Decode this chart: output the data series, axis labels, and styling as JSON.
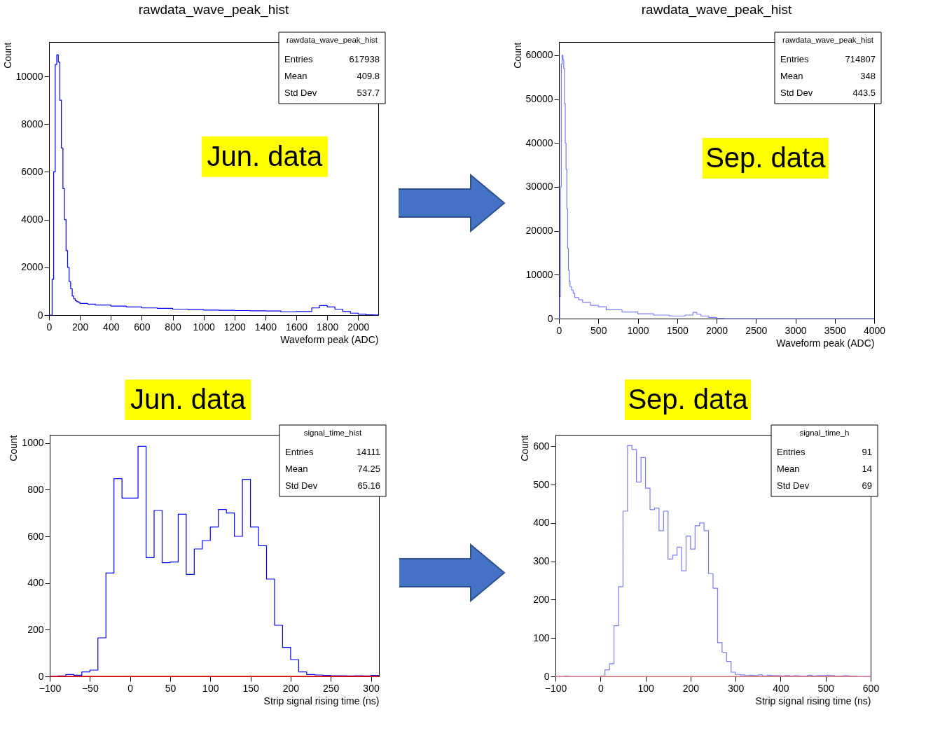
{
  "chart_data": [
    {
      "type": "histogram",
      "title": "rawdata_wave_peak_hist",
      "xlabel": "Waveform peak (ADC)",
      "ylabel": "Count",
      "color": "#0000ff",
      "bins": [
        0,
        10,
        20,
        30,
        40,
        50,
        60,
        70,
        80,
        90,
        100,
        110,
        120,
        130,
        140,
        150,
        160,
        170,
        180,
        190,
        200,
        250,
        300,
        400,
        500,
        600,
        700,
        800,
        900,
        1000,
        1100,
        1200,
        1300,
        1400,
        1500,
        1600,
        1700,
        1750,
        1800,
        1850,
        1900,
        1950,
        2000,
        2050,
        2100,
        2130
      ],
      "values": [
        0,
        0,
        1500,
        6000,
        10500,
        10900,
        10600,
        9000,
        7000,
        5300,
        4000,
        2700,
        2000,
        1400,
        1100,
        800,
        680,
        600,
        560,
        530,
        490,
        460,
        420,
        380,
        340,
        300,
        280,
        250,
        230,
        210,
        200,
        190,
        180,
        170,
        140,
        150,
        300,
        400,
        340,
        250,
        150,
        80,
        40,
        15,
        5
      ],
      "xlim": [
        0,
        2130
      ],
      "xticks": [
        0,
        200,
        400,
        600,
        800,
        1000,
        1200,
        1400,
        1600,
        1800,
        2000
      ],
      "ylim": [
        0,
        11440
      ],
      "yticks": [
        0,
        2000,
        4000,
        6000,
        8000,
        10000
      ],
      "annotations": [
        "rawdata_wave_peak_hist",
        "Entries 617938",
        "Mean 409.8",
        "Std Dev 537.7",
        "Jun. data"
      ]
    },
    {
      "type": "histogram",
      "title": "rawdata_wave_peak_hist",
      "xlabel": "Waveform peak (ADC)",
      "ylabel": "Count",
      "color": "#7b7bff",
      "bins": [
        0,
        10,
        20,
        30,
        40,
        50,
        60,
        70,
        80,
        90,
        100,
        110,
        120,
        130,
        140,
        160,
        180,
        200,
        250,
        300,
        400,
        500,
        600,
        800,
        1000,
        1200,
        1400,
        1600,
        1700,
        1750,
        1800,
        1900,
        2000,
        2100,
        4000
      ],
      "values": [
        0,
        5000,
        30000,
        58000,
        60000,
        59000,
        57000,
        49000,
        40000,
        34000,
        25000,
        16000,
        11000,
        8500,
        7300,
        6500,
        5800,
        4800,
        4300,
        3700,
        3000,
        2700,
        2000,
        1500,
        1100,
        800,
        600,
        800,
        1400,
        1000,
        600,
        250,
        40,
        0
      ],
      "xlim": [
        0,
        4000
      ],
      "xticks": [
        0,
        500,
        1000,
        1500,
        2000,
        2500,
        3000,
        3500,
        4000
      ],
      "ylim": [
        0,
        63000
      ],
      "yticks": [
        0,
        10000,
        20000,
        30000,
        40000,
        50000,
        60000
      ],
      "annotations": [
        "rawdata_wave_peak_hist",
        "Entries 714807",
        "Mean 348",
        "Std Dev 443.5",
        "Sep. data"
      ]
    },
    {
      "type": "histogram",
      "xlabel": "Strip signal rising time (ns)",
      "ylabel": "Count",
      "color": "#0000ff",
      "bins": [
        -100,
        -90,
        -80,
        -70,
        -60,
        -50,
        -40,
        -30,
        -20,
        -10,
        0,
        10,
        20,
        30,
        40,
        50,
        60,
        70,
        80,
        90,
        100,
        110,
        120,
        130,
        140,
        150,
        160,
        170,
        180,
        190,
        200,
        210,
        220,
        230,
        240,
        250,
        260,
        270,
        280,
        290,
        300,
        310
      ],
      "values": [
        0,
        2,
        8,
        5,
        19,
        27,
        165,
        443,
        847,
        764,
        764,
        986,
        509,
        711,
        487,
        490,
        695,
        437,
        546,
        582,
        640,
        715,
        700,
        600,
        844,
        640,
        560,
        417,
        219,
        124,
        72,
        19,
        8,
        6,
        4,
        3,
        3,
        2,
        3,
        2,
        4
      ],
      "xlim": [
        -100,
        310
      ],
      "xticks": [
        -100,
        -50,
        0,
        50,
        100,
        150,
        200,
        250,
        300
      ],
      "ylim": [
        0,
        1035
      ],
      "yticks": [
        0,
        200,
        400,
        600,
        800,
        1000
      ],
      "ref_lines": [
        {
          "axis": "y",
          "value": 0,
          "color": "#ff0000"
        }
      ],
      "annotations": [
        "signal_time_hist",
        "Entries 14111",
        "Mean 74.25",
        "Std Dev 65.16",
        "Jun. data"
      ]
    },
    {
      "type": "histogram",
      "xlabel": "Strip signal rising time (ns)",
      "ylabel": "Count",
      "color": "#7b7bff",
      "bins": [
        -100,
        -90,
        -80,
        -70,
        -60,
        -50,
        -40,
        -30,
        -20,
        -10,
        0,
        10,
        20,
        30,
        40,
        50,
        60,
        70,
        80,
        90,
        100,
        110,
        120,
        130,
        140,
        150,
        160,
        170,
        180,
        190,
        200,
        210,
        220,
        230,
        240,
        250,
        260,
        270,
        280,
        290,
        300,
        310,
        320,
        330,
        340,
        350,
        360,
        370,
        380,
        390,
        400,
        410,
        420,
        430,
        440,
        450,
        460,
        470,
        480,
        490,
        500,
        510,
        520,
        530,
        540,
        550,
        560,
        570,
        580,
        590,
        600
      ],
      "values": [
        0,
        0,
        1,
        0,
        0,
        0,
        0,
        0,
        0,
        0,
        1,
        17,
        33,
        132,
        234,
        431,
        602,
        592,
        507,
        571,
        491,
        435,
        439,
        380,
        431,
        306,
        316,
        337,
        275,
        366,
        332,
        393,
        400,
        380,
        268,
        230,
        88,
        63,
        39,
        11,
        5,
        4,
        2,
        3,
        2,
        4,
        1,
        3,
        2,
        2,
        1,
        2,
        1,
        2,
        1,
        1,
        3,
        1,
        2,
        2,
        3,
        2,
        1,
        1,
        2,
        1,
        1,
        0,
        0,
        0
      ],
      "xlim": [
        -100,
        600
      ],
      "xticks": [
        -100,
        0,
        100,
        200,
        300,
        400,
        500,
        600
      ],
      "ylim": [
        0,
        630
      ],
      "yticks": [
        0,
        100,
        200,
        300,
        400,
        500,
        600
      ],
      "ref_lines": [
        {
          "axis": "y",
          "value": 0,
          "color": "#ff9a9a"
        }
      ],
      "annotations": [
        "signal_time_h",
        "Entries 91",
        "Mean 14",
        "Std Dev 69",
        "Sep. data"
      ]
    }
  ]
}
